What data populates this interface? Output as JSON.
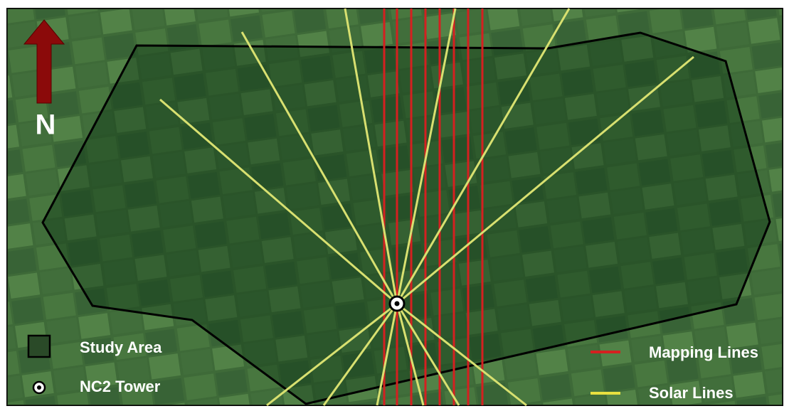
{
  "north_label": "N",
  "legend": {
    "study_area": "Study Area",
    "tower": "NC2 Tower",
    "mapping_lines": "Mapping Lines",
    "solar_lines": "Solar Lines"
  }
}
